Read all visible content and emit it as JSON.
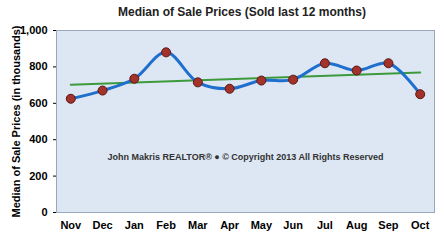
{
  "chart_data": {
    "type": "line",
    "title": "Median of Sale Prices (Sold last 12 months)",
    "y_label": "Median of Sale Prices (in thousands)",
    "annotation": "John Makris REALTOR® ● © Copyright 2013 All Rights Reserved",
    "categories": [
      "Nov",
      "Dec",
      "Jan",
      "Feb",
      "Mar",
      "Apr",
      "May",
      "Jun",
      "Jul",
      "Aug",
      "Sep",
      "Oct"
    ],
    "values": [
      625,
      670,
      735,
      880,
      715,
      680,
      725,
      730,
      820,
      780,
      820,
      650
    ],
    "color": "#1f6fce",
    "marker": "circle",
    "ylim": [
      0,
      1000
    ],
    "yticks": [
      0,
      200,
      400,
      600,
      800,
      1000
    ],
    "grid": false
  }
}
